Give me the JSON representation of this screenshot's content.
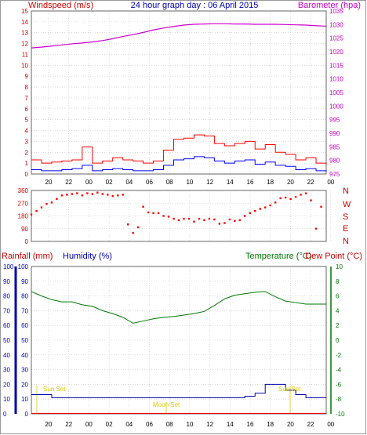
{
  "header": {
    "wind_label": "Windspeed (m/s)",
    "title": "24 hour graph day : 06 April 2015",
    "baro_label": "Barometer (hpa)"
  },
  "colors": {
    "wind": "#ff0000",
    "gust": "#ff0000",
    "avg": "#0000ff",
    "baro": "#cc00cc",
    "dir": "#ff0000",
    "temp": "#007700",
    "dew": "#cc0000",
    "hum": "#0000aa",
    "rain": "#ff0000",
    "sun": "#ddcc00",
    "grid": "#c8c8c8"
  },
  "x_ticks": [
    "20",
    "22",
    "00",
    "02",
    "04",
    "06",
    "08",
    "10",
    "12",
    "14",
    "16",
    "18",
    "20",
    "22",
    "00"
  ],
  "compass": [
    "N",
    "W",
    "S",
    "E",
    "N"
  ],
  "bottom_header": {
    "rain_label": "Rainfall (mm)",
    "hum_label": "Humidity (%)",
    "temp_label": "Temperature (°C)",
    "dew_label": "Dew Point (°C)"
  },
  "annotations": {
    "sunset_left": "Sun Set",
    "sunset_right": "Sun Set",
    "moonset": "Moon Set"
  },
  "chart_data": [
    {
      "type": "line",
      "name": "wind-baro",
      "x_unit": "hours",
      "x_range": [
        19,
        48
      ],
      "y_left": {
        "label": "Windspeed (m/s)",
        "ticks": [
          "0",
          "1",
          "2",
          "3",
          "4",
          "5",
          "6",
          "7",
          "8",
          "9",
          "10",
          "11",
          "12",
          "13",
          "14",
          "15"
        ],
        "range": [
          0,
          15
        ]
      },
      "y_right": {
        "label": "Barometer (hpa)",
        "ticks": [
          "975",
          "980",
          "985",
          "990",
          "995",
          "1000",
          "1005",
          "1010",
          "1015",
          "1020",
          "1025",
          "1030",
          "1035"
        ],
        "range": [
          975,
          1035
        ]
      },
      "series": [
        {
          "role": "gust",
          "axis": "left",
          "x": [
            19,
            20,
            21,
            22,
            23,
            24,
            25,
            26,
            27,
            28,
            29,
            30,
            31,
            32,
            33,
            34,
            35,
            36,
            37,
            38,
            39,
            40,
            41,
            42,
            43,
            44,
            45,
            46,
            47,
            48
          ],
          "y": [
            1.3,
            1.0,
            1.1,
            1.2,
            1.3,
            2.5,
            1.0,
            1.2,
            1.5,
            1.3,
            1.2,
            1.0,
            1.2,
            2.2,
            3.2,
            3.3,
            3.6,
            3.5,
            2.8,
            2.6,
            2.8,
            3.0,
            2.3,
            2.7,
            2.0,
            1.8,
            1.3,
            1.5,
            1.0,
            0.8
          ]
        },
        {
          "role": "average",
          "axis": "left",
          "x": [
            19,
            20,
            21,
            22,
            23,
            24,
            25,
            26,
            27,
            28,
            29,
            30,
            31,
            32,
            33,
            34,
            35,
            36,
            37,
            38,
            39,
            40,
            41,
            42,
            43,
            44,
            45,
            46,
            47,
            48
          ],
          "y": [
            0.4,
            0.3,
            0.3,
            0.4,
            0.5,
            0.8,
            0.3,
            0.4,
            0.5,
            0.4,
            0.3,
            0.3,
            0.4,
            0.8,
            1.3,
            1.4,
            1.6,
            1.5,
            1.2,
            1.0,
            1.2,
            1.3,
            0.9,
            1.1,
            0.8,
            0.7,
            0.4,
            0.5,
            0.3,
            0.2
          ]
        },
        {
          "role": "barometer",
          "axis": "right",
          "x": [
            19,
            20,
            21,
            22,
            23,
            24,
            25,
            26,
            27,
            28,
            29,
            30,
            31,
            32,
            33,
            34,
            35,
            36,
            37,
            38,
            39,
            40,
            41,
            42,
            43,
            44,
            45,
            46,
            47,
            48
          ],
          "y": [
            1021.4,
            1021.7,
            1022.1,
            1022.5,
            1022.9,
            1023.2,
            1023.6,
            1024.1,
            1024.8,
            1025.6,
            1026.3,
            1027.1,
            1028.0,
            1028.7,
            1029.3,
            1029.8,
            1030.1,
            1030.2,
            1030.3,
            1030.3,
            1030.2,
            1030.2,
            1030.1,
            1030.1,
            1030.1,
            1030.0,
            1029.9,
            1029.8,
            1029.6,
            1029.4
          ]
        }
      ]
    },
    {
      "type": "scatter",
      "name": "wind-direction",
      "y_ticks": [
        "0",
        "90",
        "180",
        "270",
        "360"
      ],
      "y_range": [
        0,
        360
      ],
      "x": [
        19,
        19.5,
        20,
        20.5,
        21,
        21.5,
        22,
        22.5,
        23,
        23.5,
        24,
        24.5,
        25,
        25.5,
        26,
        26.5,
        27,
        27.5,
        28,
        28.5,
        29,
        29.5,
        30,
        30.5,
        31,
        31.5,
        32,
        32.5,
        33,
        33.5,
        34,
        34.5,
        35,
        35.5,
        36,
        36.5,
        37,
        37.5,
        38,
        38.5,
        39,
        39.5,
        40,
        40.5,
        41,
        41.5,
        42,
        42.5,
        43,
        43.5,
        44,
        44.5,
        45,
        45.5,
        46,
        46.5,
        47,
        47.5
      ],
      "y": [
        190,
        215,
        240,
        265,
        275,
        300,
        325,
        330,
        335,
        340,
        325,
        340,
        335,
        345,
        335,
        330,
        320,
        325,
        330,
        120,
        60,
        100,
        245,
        205,
        200,
        200,
        180,
        175,
        160,
        150,
        160,
        160,
        140,
        160,
        150,
        160,
        155,
        125,
        130,
        155,
        145,
        150,
        180,
        200,
        215,
        230,
        240,
        255,
        275,
        305,
        310,
        300,
        315,
        330,
        340,
        290,
        90,
        245
      ]
    },
    {
      "type": "line",
      "name": "temperature-humidity-rain",
      "y_left": {
        "label": "Humidity (%)",
        "ticks": [
          "0",
          "10",
          "20",
          "30",
          "40",
          "50",
          "60",
          "70",
          "80",
          "90",
          "100"
        ],
        "range": [
          0,
          100
        ]
      },
      "y_right": {
        "label": "Temperature (°C)",
        "ticks": [
          "10",
          "8",
          "6",
          "4",
          "2",
          "0",
          "-2",
          "-4",
          "-6",
          "-8",
          "-10"
        ],
        "range": [
          -10,
          10
        ]
      },
      "series": [
        {
          "role": "temperature",
          "axis": "right",
          "x": [
            19,
            20,
            21,
            22,
            23,
            24,
            25,
            26,
            27,
            28,
            29,
            30,
            31,
            32,
            33,
            34,
            35,
            36,
            37,
            38,
            39,
            40,
            41,
            42,
            43,
            44,
            45,
            46,
            47,
            48
          ],
          "y": [
            6.6,
            6.0,
            5.5,
            5.2,
            5.2,
            4.8,
            4.6,
            4.0,
            3.6,
            3.1,
            2.3,
            2.6,
            2.9,
            3.1,
            3.2,
            3.4,
            3.6,
            3.9,
            4.7,
            5.6,
            6.1,
            6.3,
            6.5,
            6.6,
            5.9,
            5.3,
            5.1,
            4.9,
            4.9,
            4.9
          ]
        },
        {
          "role": "humidity",
          "axis": "left",
          "x": [
            19,
            20,
            21,
            22,
            23,
            24,
            25,
            26,
            27,
            28,
            29,
            30,
            31,
            32,
            33,
            34,
            35,
            36,
            37,
            38,
            39,
            40,
            41,
            42,
            43,
            44,
            45,
            46,
            47,
            48
          ],
          "y": [
            13,
            13,
            11,
            11,
            11,
            11,
            11,
            11,
            11,
            11,
            11,
            11,
            11,
            11,
            11,
            11,
            11,
            11,
            11,
            11,
            11,
            12,
            14,
            20,
            20,
            16,
            13,
            11,
            11,
            11
          ]
        },
        {
          "role": "rainfall",
          "axis": "left",
          "x": [
            19,
            48
          ],
          "y": [
            0.3,
            0.3
          ]
        }
      ]
    }
  ]
}
